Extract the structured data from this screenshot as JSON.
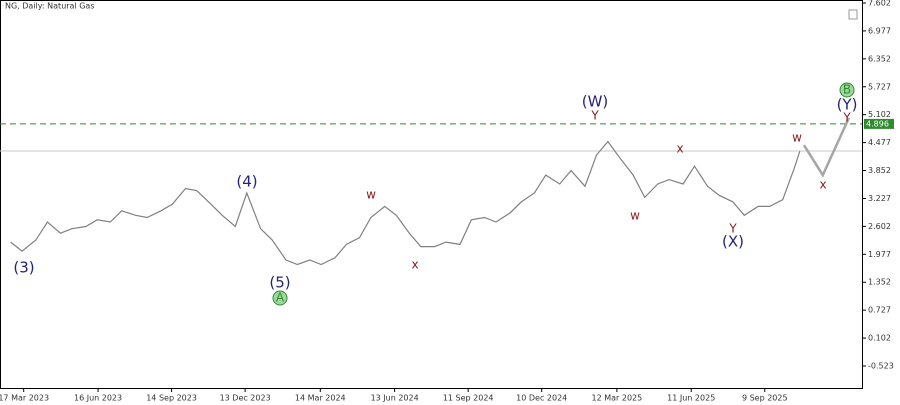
{
  "chart_data": {
    "type": "line",
    "title": "NG, Daily:  Natural Gas",
    "x": [
      "2023-03-01",
      "2023-03-15",
      "2023-04-01",
      "2023-04-15",
      "2023-05-01",
      "2023-05-15",
      "2023-06-01",
      "2023-06-15",
      "2023-07-01",
      "2023-07-15",
      "2023-08-01",
      "2023-08-15",
      "2023-09-01",
      "2023-09-15",
      "2023-10-01",
      "2023-10-15",
      "2023-11-01",
      "2023-11-15",
      "2023-12-01",
      "2023-12-15",
      "2024-01-01",
      "2024-01-15",
      "2024-02-01",
      "2024-02-15",
      "2024-03-01",
      "2024-03-15",
      "2024-04-01",
      "2024-04-15",
      "2024-05-01",
      "2024-05-15",
      "2024-06-01",
      "2024-06-15",
      "2024-07-01",
      "2024-07-15",
      "2024-08-01",
      "2024-08-15",
      "2024-09-01",
      "2024-09-15",
      "2024-10-01",
      "2024-10-15",
      "2024-11-01",
      "2024-11-15",
      "2024-12-01",
      "2024-12-15",
      "2025-01-01",
      "2025-01-15",
      "2025-02-01",
      "2025-02-15",
      "2025-03-01",
      "2025-03-15",
      "2025-04-01",
      "2025-04-15",
      "2025-05-01",
      "2025-05-15",
      "2025-06-01",
      "2025-06-15",
      "2025-07-01",
      "2025-07-15",
      "2025-08-01",
      "2025-08-15",
      "2025-09-01",
      "2025-09-15",
      "2025-10-01",
      "2025-10-15",
      "2025-10-22"
    ],
    "series": [
      {
        "name": "Natural Gas",
        "color": "#808080",
        "values": [
          2.25,
          2.05,
          2.3,
          2.7,
          2.45,
          2.55,
          2.6,
          2.75,
          2.7,
          2.95,
          2.85,
          2.8,
          2.95,
          3.1,
          3.45,
          3.4,
          3.1,
          2.85,
          2.6,
          3.35,
          2.55,
          2.3,
          1.85,
          1.75,
          1.85,
          1.75,
          1.9,
          2.2,
          2.35,
          2.8,
          3.05,
          2.85,
          2.45,
          2.15,
          2.15,
          2.25,
          2.2,
          2.75,
          2.8,
          2.7,
          2.9,
          3.15,
          3.35,
          3.75,
          3.55,
          3.85,
          3.5,
          4.2,
          4.5,
          4.15,
          3.75,
          3.25,
          3.55,
          3.65,
          3.55,
          3.95,
          3.5,
          3.3,
          3.15,
          2.85,
          3.05,
          3.05,
          3.2,
          3.9,
          4.29
        ]
      }
    ],
    "forecast": {
      "color": "#a6a6a6",
      "x": [
        "2025-10-27",
        "2025-11-19",
        "2025-12-21"
      ],
      "values": [
        4.42,
        3.75,
        5.03
      ]
    },
    "levels": [
      {
        "value": 4.896,
        "label": "4.896",
        "color": "#2e8b2e",
        "dashed": true
      },
      {
        "value": 4.29,
        "color": "#c8c8c8",
        "dashed": false
      }
    ],
    "annotations": [
      {
        "text": "(3)",
        "color": "#23237a"
      },
      {
        "text": "(4)",
        "color": "#23237a"
      },
      {
        "text": "(5)",
        "color": "#23237a"
      },
      {
        "text": "A",
        "color": "#2e8b2e",
        "circled": true
      },
      {
        "text": "w",
        "color": "#8b1a1a"
      },
      {
        "text": "x",
        "color": "#8b1a1a"
      },
      {
        "text": "(W)",
        "color": "#23237a"
      },
      {
        "text": "Y",
        "color": "#8b1a1a"
      },
      {
        "text": "x",
        "color": "#8b1a1a"
      },
      {
        "text": "w",
        "color": "#8b1a1a"
      },
      {
        "text": "Y",
        "color": "#8b1a1a"
      },
      {
        "text": "(X)",
        "color": "#23237a"
      },
      {
        "text": "w",
        "color": "#8b1a1a"
      },
      {
        "text": "x",
        "color": "#8b1a1a"
      },
      {
        "text": "(Y)",
        "color": "#23237a"
      },
      {
        "text": "Y",
        "color": "#8b1a1a"
      },
      {
        "text": "B",
        "color": "#2e8b2e",
        "circled": true
      }
    ],
    "xlim": [
      "2023-02-16",
      "2026-01-06"
    ],
    "xticks": [
      {
        "value": "2023-03-17",
        "label": "17 Mar 2023"
      },
      {
        "value": "2023-06-16",
        "label": "16 Jun 2023"
      },
      {
        "value": "2023-09-14",
        "label": "14 Sep 2023"
      },
      {
        "value": "2023-12-13",
        "label": "13 Dec 2023"
      },
      {
        "value": "2024-03-14",
        "label": "14 Mar 2024"
      },
      {
        "value": "2024-06-13",
        "label": "13 Jun 2024"
      },
      {
        "value": "2024-09-11",
        "label": "11 Sep 2024"
      },
      {
        "value": "2024-12-10",
        "label": "10 Dec 2024"
      },
      {
        "value": "2025-03-12",
        "label": "12 Mar 2025"
      },
      {
        "value": "2025-06-11",
        "label": "11 Jun 2025"
      },
      {
        "value": "2025-09-09",
        "label": "9 Sep 2025"
      }
    ],
    "ylim": [
      -1.015,
      7.669
    ],
    "yticks": [
      7.602,
      6.977,
      6.352,
      5.727,
      5.102,
      4.477,
      3.852,
      3.227,
      2.602,
      1.977,
      1.352,
      0.727,
      0.102,
      -0.523
    ]
  }
}
